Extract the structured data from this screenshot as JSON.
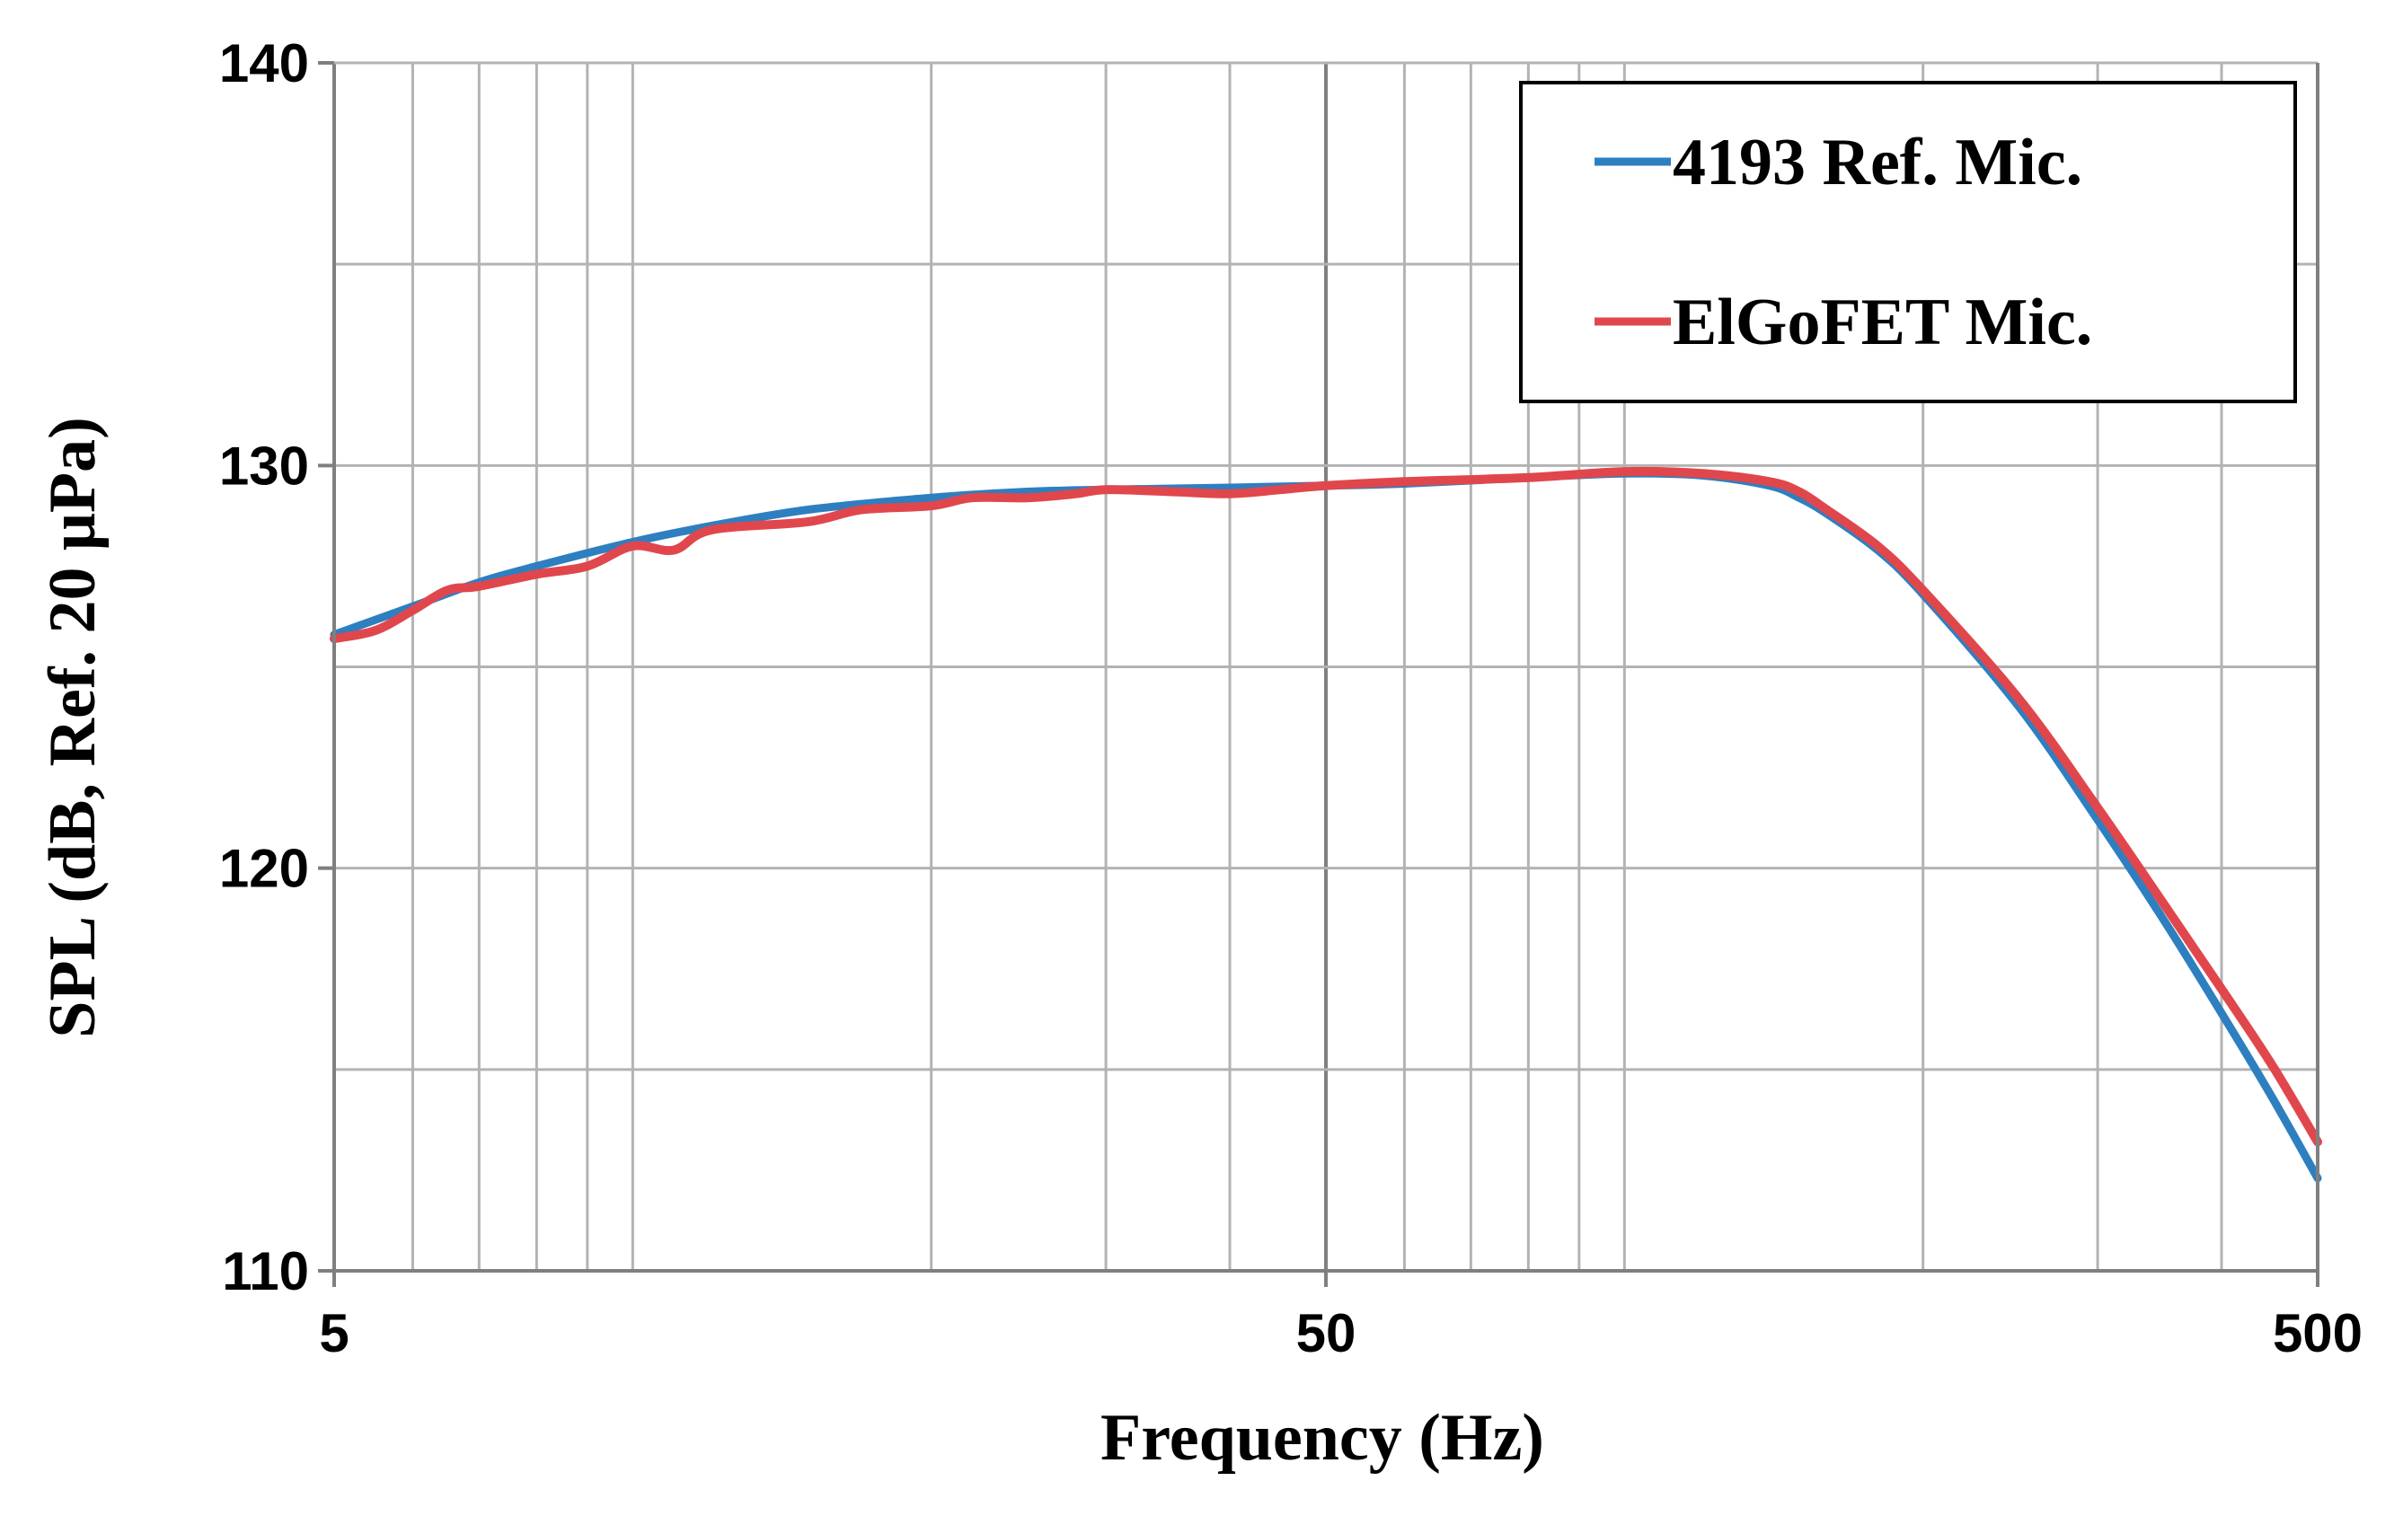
{
  "chart_data": {
    "type": "line",
    "xscale": "log",
    "xlabel": "Frequency (Hz)",
    "ylabel": "SPL (dB, Ref. 20 μPa)",
    "xlim": [
      5,
      500
    ],
    "ylim": [
      110,
      140
    ],
    "xticks": [
      5,
      50,
      500
    ],
    "xtick_labels": [
      "5",
      "50",
      "500"
    ],
    "yticks": [
      110,
      120,
      130,
      140
    ],
    "ytick_labels": [
      "110",
      "120",
      "130",
      "140"
    ],
    "grid": true,
    "legend_position": "top-right",
    "series": [
      {
        "name": "4193 Ref. Mic.",
        "color": "#2e7fc0",
        "x": [
          5,
          6,
          7,
          8,
          10,
          12,
          15,
          20,
          25,
          30,
          40,
          50,
          60,
          80,
          100,
          120,
          140,
          150,
          160,
          180,
          200,
          250,
          300,
          350,
          400,
          450,
          500
        ],
        "y": [
          125.8,
          126.5,
          127.1,
          127.5,
          128.1,
          128.5,
          128.9,
          129.2,
          129.35,
          129.4,
          129.45,
          129.5,
          129.55,
          129.7,
          129.8,
          129.75,
          129.5,
          129.2,
          128.8,
          127.9,
          126.8,
          124.0,
          121.2,
          118.7,
          116.4,
          114.3,
          112.3
        ]
      },
      {
        "name": "ElGoFET Mic.",
        "color": "#e0474c",
        "x": [
          5,
          5.5,
          6,
          6.5,
          7,
          8,
          9,
          10,
          11,
          12,
          15,
          17,
          20,
          22,
          25,
          28,
          30,
          35,
          40,
          45,
          50,
          60,
          80,
          100,
          120,
          140,
          150,
          160,
          180,
          200,
          250,
          300,
          350,
          400,
          450,
          500
        ],
        "y": [
          125.7,
          125.9,
          126.4,
          126.9,
          127.0,
          127.3,
          127.5,
          128.0,
          127.9,
          128.4,
          128.6,
          128.9,
          129.0,
          129.2,
          129.2,
          129.3,
          129.4,
          129.35,
          129.3,
          129.4,
          129.5,
          129.6,
          129.7,
          129.85,
          129.8,
          129.6,
          129.35,
          128.9,
          128.0,
          126.9,
          124.2,
          121.5,
          119.1,
          117.0,
          115.1,
          113.2
        ]
      }
    ]
  }
}
